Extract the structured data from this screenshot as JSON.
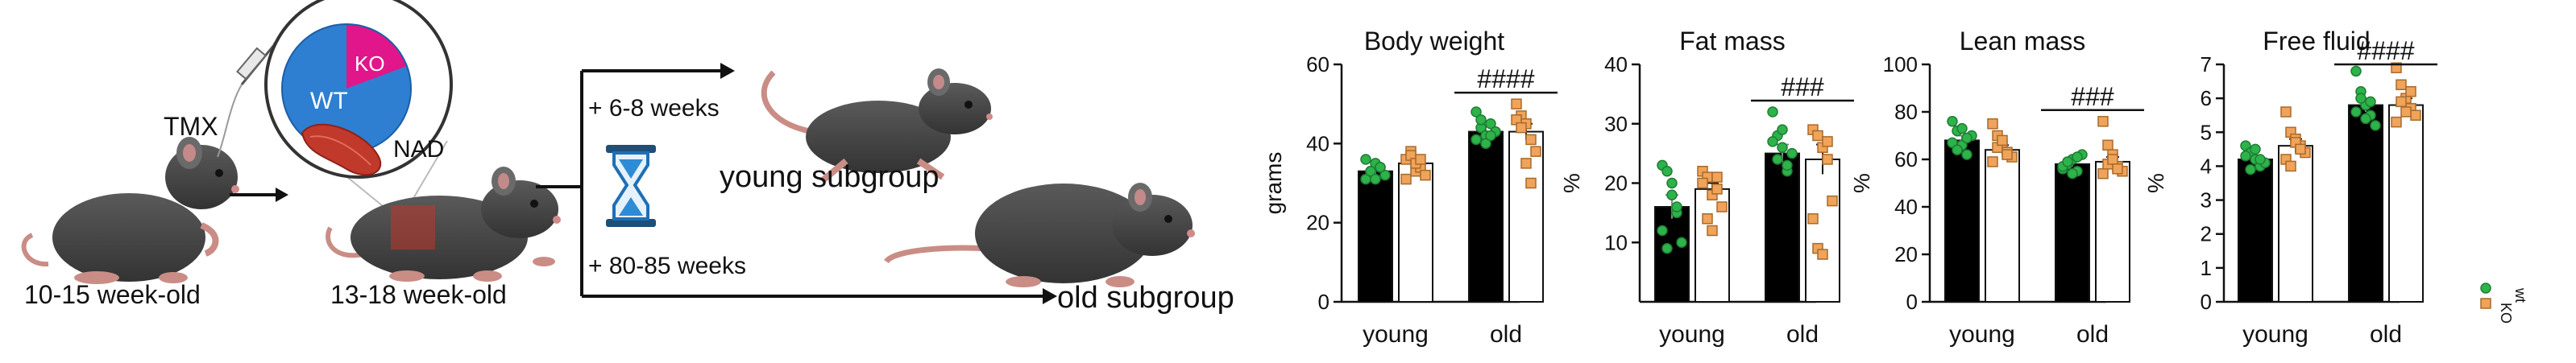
{
  "schematic": {
    "injection_label": "TMX",
    "wt_label": "WT",
    "ko_label": "KO",
    "nad_label": "NAD",
    "age_initial": "10-15 week-old",
    "age_injected": "13-18 week-old",
    "arrow_young": "+ 6-8 weeks",
    "arrow_old": "+ 80-85 weeks",
    "young_group": "young subgroup",
    "old_group": "old subgroup"
  },
  "legend": {
    "wt": "wt",
    "ko": "KO"
  },
  "colors": {
    "wt_bar": "#000000",
    "ko_bar": "#ffffff",
    "wt_point": "#2db34a",
    "ko_point": "#f0a35a",
    "pie_blue": "#2e7fd1",
    "pie_magenta": "#e0168a",
    "muscle": "#c0392b"
  },
  "chart_data": [
    {
      "type": "bar",
      "title": "Body weight",
      "ylabel": "grams",
      "categories": [
        "young",
        "old"
      ],
      "ylim": [
        0,
        60
      ],
      "yticks": [
        0,
        20,
        40,
        60
      ],
      "series": [
        {
          "values": [
            33,
            43
          ],
          "err": [
            1,
            1.5
          ],
          "points": [
            [
              31,
              33,
              35,
              34,
              32,
              36,
              33,
              31,
              34
            ],
            [
              48,
              44,
              42,
              45,
              43,
              41,
              46,
              40,
              42
            ]
          ]
        },
        {
          "values": [
            35,
            43
          ],
          "err": [
            1.5,
            2
          ],
          "points": [
            [
              36,
              38,
              33,
              34,
              32,
              31,
              37,
              35,
              36
            ],
            [
              50,
              47,
              45,
              41,
              38,
              46,
              44,
              35,
              30
            ]
          ]
        }
      ],
      "significance": "####"
    },
    {
      "type": "bar",
      "title": "Fat mass",
      "ylabel": "%",
      "categories": [
        "young",
        "old"
      ],
      "ylim": [
        0,
        40
      ],
      "yticks": [
        10,
        20,
        30,
        40
      ],
      "series": [
        {
          "values": [
            16,
            25
          ],
          "err": [
            2,
            1.5
          ],
          "points": [
            [
              23,
              22,
              18,
              15,
              10,
              12,
              9,
              20,
              16
            ],
            [
              32,
              28,
              26,
              22,
              25,
              27,
              24,
              29,
              23
            ]
          ]
        },
        {
          "values": [
            19,
            24
          ],
          "err": [
            1,
            2.5
          ],
          "points": [
            [
              22,
              21,
              18,
              19,
              16,
              20,
              14,
              12,
              21
            ],
            [
              29,
              28,
              26,
              24,
              17,
              14,
              9,
              8,
              27
            ]
          ]
        }
      ],
      "significance": "###"
    },
    {
      "type": "bar",
      "title": "Lean mass",
      "ylabel": "%",
      "categories": [
        "young",
        "old"
      ],
      "ylim": [
        0,
        100
      ],
      "yticks": [
        0,
        20,
        40,
        60,
        80,
        100
      ],
      "series": [
        {
          "values": [
            68,
            58
          ],
          "err": [
            2,
            1
          ],
          "points": [
            [
              76,
              72,
              66,
              62,
              70,
              67,
              64,
              73,
              69
            ],
            [
              56,
              58,
              60,
              55,
              62,
              57,
              59,
              54,
              61
            ]
          ]
        },
        {
          "values": [
            64,
            59
          ],
          "err": [
            2,
            2
          ],
          "points": [
            [
              75,
              70,
              66,
              63,
              61,
              59,
              65,
              68,
              62
            ],
            [
              76,
              66,
              62,
              57,
              55,
              54,
              58,
              60,
              56
            ]
          ]
        }
      ],
      "significance": "###"
    },
    {
      "type": "bar",
      "title": "Free fluid",
      "ylabel": "%",
      "categories": [
        "young",
        "old"
      ],
      "ylim": [
        0,
        7
      ],
      "yticks": [
        0,
        1,
        2,
        3,
        4,
        5,
        6,
        7
      ],
      "series": [
        {
          "values": [
            4.2,
            5.8
          ],
          "err": [
            0.1,
            0.2
          ],
          "points": [
            [
              4.6,
              4.4,
              4.2,
              4.0,
              4.1,
              4.3,
              3.9,
              4.5,
              4.2
            ],
            [
              6.8,
              6.2,
              5.8,
              5.5,
              5.2,
              5.6,
              6.0,
              5.4,
              5.9
            ]
          ]
        },
        {
          "values": [
            4.6,
            5.8
          ],
          "err": [
            0.2,
            0.2
          ],
          "points": [
            [
              5.6,
              5.0,
              4.8,
              4.6,
              4.4,
              4.2,
              4.0,
              4.7,
              4.5
            ],
            [
              6.9,
              6.4,
              6.0,
              5.7,
              5.5,
              5.3,
              5.9,
              5.6,
              6.2
            ]
          ]
        }
      ],
      "significance": "####"
    }
  ]
}
